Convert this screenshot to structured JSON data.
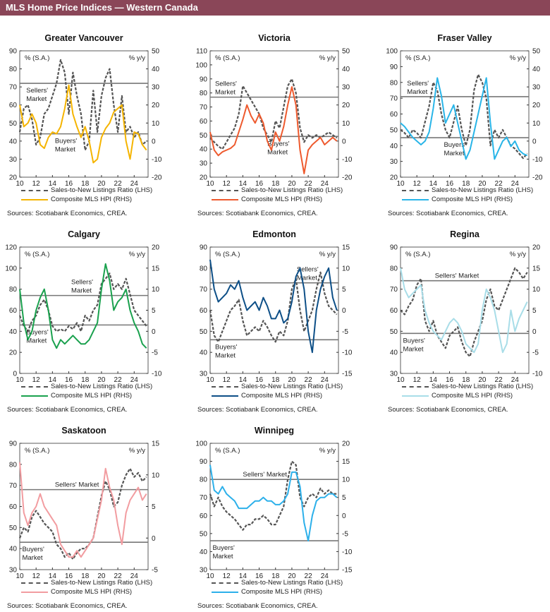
{
  "header": {
    "title": "MLS Home Price Indices — Western Canada"
  },
  "common": {
    "left_unit": "% (S.A.)",
    "right_unit": "% y/y",
    "legend_snlr": "Sales-to-New Listings Ratio (LHS)",
    "legend_hpi": "Composite MLS HPI (RHS)",
    "sources": "Sources: Scotiabank Economics, CREA.",
    "x_ticks": [
      "10",
      "12",
      "14",
      "16",
      "18",
      "20",
      "22",
      "24"
    ],
    "snlr_color": "#555555",
    "threshold_color": "#777777"
  },
  "chart_data": [
    {
      "type": "line",
      "title": "Greater Vancouver",
      "color": "#f5b400",
      "ylim": [
        20,
        90
      ],
      "ystep": 10,
      "y2lim": [
        -20,
        50
      ],
      "y2step": 10,
      "sellers_threshold": 72,
      "buyers_threshold": 44,
      "sellers_label": [
        "Sellers'",
        "Market"
      ],
      "buyers_label": [
        "Buyers'",
        "Market"
      ],
      "x": [
        10,
        10.5,
        11,
        11.5,
        12,
        12.5,
        13,
        13.5,
        14,
        14.5,
        15,
        15.5,
        16,
        16.5,
        17,
        17.5,
        18,
        18.5,
        19,
        19.5,
        20,
        20.5,
        21,
        21.5,
        22,
        22.5,
        23,
        23.5,
        24,
        24.5,
        25,
        25.5
      ],
      "series": [
        {
          "name": "Sales-to-New Listings Ratio (LHS)",
          "axis": "left",
          "values": [
            45,
            58,
            60,
            52,
            38,
            42,
            55,
            58,
            65,
            72,
            85,
            78,
            55,
            78,
            65,
            55,
            35,
            40,
            68,
            45,
            65,
            75,
            80,
            60,
            45,
            65,
            45,
            48,
            42,
            45,
            38,
            40
          ]
        },
        {
          "name": "Composite MLS HPI (RHS)",
          "axis": "right",
          "values": [
            20,
            8,
            10,
            15,
            10,
            -2,
            -4,
            2,
            5,
            4,
            8,
            18,
            31,
            15,
            8,
            2,
            8,
            0,
            -12,
            -10,
            2,
            7,
            10,
            16,
            18,
            20,
            0,
            -10,
            5,
            4,
            -2,
            -5
          ]
        }
      ]
    },
    {
      "type": "line",
      "title": "Victoria",
      "color": "#ee5a2e",
      "ylim": [
        20,
        110
      ],
      "ystep": 10,
      "y2lim": [
        -20,
        50
      ],
      "y2step": 10,
      "sellers_threshold": 77,
      "buyers_threshold": 49,
      "sellers_label": [
        "Sellers'",
        "Market"
      ],
      "buyers_label": [
        "Buyers'",
        "Market"
      ],
      "x": [
        10,
        10.5,
        11,
        11.5,
        12,
        12.5,
        13,
        13.5,
        14,
        14.5,
        15,
        15.5,
        16,
        16.5,
        17,
        17.5,
        18,
        18.5,
        19,
        19.5,
        20,
        20.5,
        21,
        21.5,
        22,
        22.5,
        23,
        23.5,
        24,
        24.5,
        25,
        25.5
      ],
      "series": [
        {
          "name": "Sales-to-New Listings Ratio (LHS)",
          "axis": "left",
          "values": [
            48,
            45,
            42,
            40,
            45,
            50,
            55,
            65,
            85,
            80,
            75,
            70,
            65,
            55,
            50,
            45,
            60,
            55,
            70,
            85,
            90,
            80,
            55,
            45,
            50,
            48,
            50,
            48,
            50,
            52,
            50,
            48
          ]
        },
        {
          "name": "Composite MLS HPI (RHS)",
          "axis": "right",
          "values": [
            5,
            -5,
            -8,
            -6,
            -5,
            -4,
            -2,
            5,
            12,
            20,
            14,
            10,
            15,
            10,
            0,
            -5,
            5,
            0,
            8,
            20,
            30,
            20,
            -5,
            -18,
            -5,
            -2,
            0,
            2,
            -2,
            0,
            2,
            0
          ]
        }
      ]
    },
    {
      "type": "line",
      "title": "Fraser Valley",
      "color": "#29b5e8",
      "ylim": [
        20,
        100
      ],
      "ystep": 10,
      "y2lim": [
        -20,
        50
      ],
      "y2step": 10,
      "sellers_threshold": 71,
      "buyers_threshold": 45,
      "sellers_label": [
        "Sellers'",
        "Market"
      ],
      "buyers_label": [
        "Buyers'",
        "Market"
      ],
      "x": [
        10,
        10.5,
        11,
        11.5,
        12,
        12.5,
        13,
        13.5,
        14,
        14.5,
        15,
        15.5,
        16,
        16.5,
        17,
        17.5,
        18,
        18.5,
        19,
        19.5,
        20,
        20.5,
        21,
        21.5,
        22,
        22.5,
        23,
        23.5,
        24,
        24.5,
        25,
        25.5
      ],
      "series": [
        {
          "name": "Sales-to-New Listings Ratio (LHS)",
          "axis": "left",
          "values": [
            50,
            48,
            45,
            50,
            48,
            45,
            55,
            65,
            80,
            75,
            60,
            50,
            45,
            55,
            65,
            50,
            40,
            50,
            75,
            85,
            80,
            70,
            40,
            50,
            45,
            50,
            45,
            40,
            38,
            35,
            32,
            35
          ]
        },
        {
          "name": "Composite MLS HPI (RHS)",
          "axis": "right",
          "values": [
            10,
            8,
            5,
            2,
            0,
            -2,
            0,
            5,
            18,
            35,
            25,
            10,
            15,
            20,
            10,
            0,
            -10,
            -5,
            5,
            15,
            25,
            35,
            10,
            -10,
            -5,
            0,
            2,
            -3,
            0,
            -5,
            -7,
            -8
          ]
        }
      ]
    },
    {
      "type": "line",
      "title": "Calgary",
      "color": "#1aa14e",
      "ylim": [
        0,
        120
      ],
      "ystep": 20,
      "y2lim": [
        -10,
        20
      ],
      "y2step": 5,
      "sellers_threshold": 74,
      "buyers_threshold": 46,
      "sellers_label": [
        "Sellers'",
        "Market"
      ],
      "buyers_label": [
        "Buyers'",
        "Market"
      ],
      "x": [
        10,
        10.5,
        11,
        11.5,
        12,
        12.5,
        13,
        13.5,
        14,
        14.5,
        15,
        15.5,
        16,
        16.5,
        17,
        17.5,
        18,
        18.5,
        19,
        19.5,
        20,
        20.5,
        21,
        21.5,
        22,
        22.5,
        23,
        23.5,
        24,
        24.5,
        25,
        25.5
      ],
      "series": [
        {
          "name": "Sales-to-New Listings Ratio (LHS)",
          "axis": "left",
          "values": [
            55,
            45,
            40,
            50,
            55,
            65,
            70,
            60,
            45,
            40,
            42,
            40,
            45,
            42,
            48,
            40,
            55,
            50,
            60,
            65,
            85,
            90,
            95,
            80,
            85,
            80,
            90,
            75,
            60,
            55,
            50,
            45
          ]
        },
        {
          "name": "Composite MLS HPI (RHS)",
          "axis": "right",
          "values": [
            10,
            2,
            -2,
            0,
            5,
            8,
            10,
            5,
            -2,
            -4,
            -2,
            -3,
            -2,
            -1,
            -2,
            -3,
            -3,
            -2,
            0,
            2,
            10,
            16,
            12,
            5,
            7,
            8,
            10,
            5,
            2,
            0,
            -3,
            -4
          ]
        }
      ]
    },
    {
      "type": "line",
      "title": "Edmonton",
      "color": "#0d4f87",
      "ylim": [
        30,
        90
      ],
      "ystep": 10,
      "y2lim": [
        -15,
        15
      ],
      "y2step": 5,
      "sellers_threshold": 73,
      "buyers_threshold": 46,
      "sellers_label": [
        "Sellers'",
        "Market"
      ],
      "buyers_label": [
        "Buyers'",
        "Market"
      ],
      "x": [
        10,
        10.5,
        11,
        11.5,
        12,
        12.5,
        13,
        13.5,
        14,
        14.5,
        15,
        15.5,
        16,
        16.5,
        17,
        17.5,
        18,
        18.5,
        19,
        19.5,
        20,
        20.5,
        21,
        21.5,
        22,
        22.5,
        23,
        23.5,
        24,
        24.5,
        25,
        25.5
      ],
      "series": [
        {
          "name": "Sales-to-New Listings Ratio (LHS)",
          "axis": "left",
          "values": [
            60,
            48,
            45,
            50,
            55,
            60,
            62,
            65,
            55,
            48,
            50,
            52,
            50,
            55,
            52,
            48,
            45,
            50,
            48,
            55,
            70,
            75,
            60,
            50,
            55,
            60,
            70,
            78,
            68,
            62,
            60,
            58
          ]
        },
        {
          "name": "Composite MLS HPI (RHS)",
          "axis": "right",
          "values": [
            12,
            5,
            2,
            3,
            4,
            6,
            5,
            7,
            3,
            0,
            1,
            2,
            0,
            3,
            1,
            -2,
            -2,
            0,
            -3,
            -2,
            2,
            8,
            10,
            5,
            -5,
            -10,
            0,
            5,
            8,
            10,
            3,
            0
          ]
        }
      ]
    },
    {
      "type": "line",
      "title": "Regina",
      "color": "#a8dde8",
      "ylim": [
        30,
        90
      ],
      "ystep": 10,
      "y2lim": [
        -10,
        20
      ],
      "y2step": 5,
      "sellers_threshold": 74,
      "buyers_threshold": 49,
      "sellers_label": [
        "Sellers' Market"
      ],
      "buyers_label": [
        "Buyers'",
        "Market"
      ],
      "x": [
        10,
        10.5,
        11,
        11.5,
        12,
        12.5,
        13,
        13.5,
        14,
        14.5,
        15,
        15.5,
        16,
        16.5,
        17,
        17.5,
        18,
        18.5,
        19,
        19.5,
        20,
        20.5,
        21,
        21.5,
        22,
        22.5,
        23,
        23.5,
        24,
        24.5,
        25,
        25.5
      ],
      "series": [
        {
          "name": "Sales-to-New Listings Ratio (LHS)",
          "axis": "left",
          "values": [
            60,
            58,
            62,
            65,
            72,
            75,
            55,
            50,
            55,
            48,
            45,
            42,
            48,
            50,
            52,
            45,
            40,
            38,
            45,
            50,
            55,
            65,
            70,
            62,
            60,
            65,
            70,
            75,
            80,
            78,
            75,
            78
          ]
        },
        {
          "name": "Composite MLS HPI (RHS)",
          "axis": "right",
          "values": [
            15,
            10,
            8,
            9,
            10,
            11,
            5,
            2,
            0,
            -1,
            -2,
            0,
            2,
            3,
            2,
            0,
            -3,
            -4,
            -5,
            -3,
            5,
            10,
            8,
            5,
            0,
            -5,
            -3,
            5,
            0,
            3,
            5,
            7
          ]
        }
      ]
    },
    {
      "type": "line",
      "title": "Saskatoon",
      "color": "#f29ca0",
      "ylim": [
        30,
        90
      ],
      "ystep": 10,
      "y2lim": [
        -5,
        15
      ],
      "y2step": 5,
      "sellers_threshold": 68,
      "buyers_threshold": 43,
      "sellers_label": [
        "Sellers' Market"
      ],
      "buyers_label": [
        "Buyers'",
        "Market"
      ],
      "x": [
        10,
        10.5,
        11,
        11.5,
        12,
        12.5,
        13,
        13.5,
        14,
        14.5,
        15,
        15.5,
        16,
        16.5,
        17,
        17.5,
        18,
        18.5,
        19,
        19.5,
        20,
        20.5,
        21,
        21.5,
        22,
        22.5,
        23,
        23.5,
        24,
        24.5,
        25,
        25.5
      ],
      "series": [
        {
          "name": "Sales-to-New Listings Ratio (LHS)",
          "axis": "left",
          "values": [
            45,
            50,
            48,
            55,
            58,
            55,
            52,
            50,
            48,
            42,
            40,
            36,
            38,
            35,
            38,
            40,
            40,
            42,
            45,
            55,
            65,
            72,
            68,
            60,
            62,
            70,
            75,
            78,
            74,
            76,
            72,
            74
          ]
        },
        {
          "name": "Composite MLS HPI (RHS)",
          "axis": "right",
          "values": [
            12,
            4,
            2,
            4,
            5,
            7,
            5,
            4,
            3,
            2,
            -1,
            -2,
            -3,
            -3,
            -2,
            -3,
            -2,
            -1,
            0,
            3,
            6,
            11,
            8,
            6,
            2,
            -1,
            4,
            6,
            7,
            8,
            6,
            7
          ]
        }
      ]
    },
    {
      "type": "line",
      "title": "Winnipeg",
      "color": "#2cb0ea",
      "ylim": [
        30,
        100
      ],
      "ystep": 10,
      "y2lim": [
        -15,
        20
      ],
      "y2step": 5,
      "sellers_threshold": 80,
      "buyers_threshold": 46,
      "sellers_label": [
        "Sellers' Market"
      ],
      "buyers_label": [
        "Buyers'",
        "Market"
      ],
      "x": [
        10,
        10.5,
        11,
        11.5,
        12,
        12.5,
        13,
        13.5,
        14,
        14.5,
        15,
        15.5,
        16,
        16.5,
        17,
        17.5,
        18,
        18.5,
        19,
        19.5,
        20,
        20.5,
        21,
        21.5,
        22,
        22.5,
        23,
        23.5,
        24,
        24.5,
        25,
        25.5
      ],
      "series": [
        {
          "name": "Sales-to-New Listings Ratio (LHS)",
          "axis": "left",
          "values": [
            72,
            65,
            70,
            65,
            62,
            60,
            58,
            55,
            52,
            55,
            55,
            58,
            58,
            60,
            58,
            55,
            55,
            60,
            65,
            80,
            90,
            88,
            70,
            65,
            70,
            72,
            70,
            75,
            72,
            74,
            72,
            72
          ]
        },
        {
          "name": "Composite MLS HPI (RHS)",
          "axis": "right",
          "values": [
            14,
            7,
            6,
            8,
            6,
            5,
            4,
            2,
            2,
            2,
            3,
            4,
            4,
            5,
            4,
            4,
            3,
            3,
            4,
            6,
            12,
            12,
            8,
            -2,
            -7,
            0,
            4,
            5,
            5,
            6,
            6,
            5
          ]
        }
      ]
    }
  ]
}
